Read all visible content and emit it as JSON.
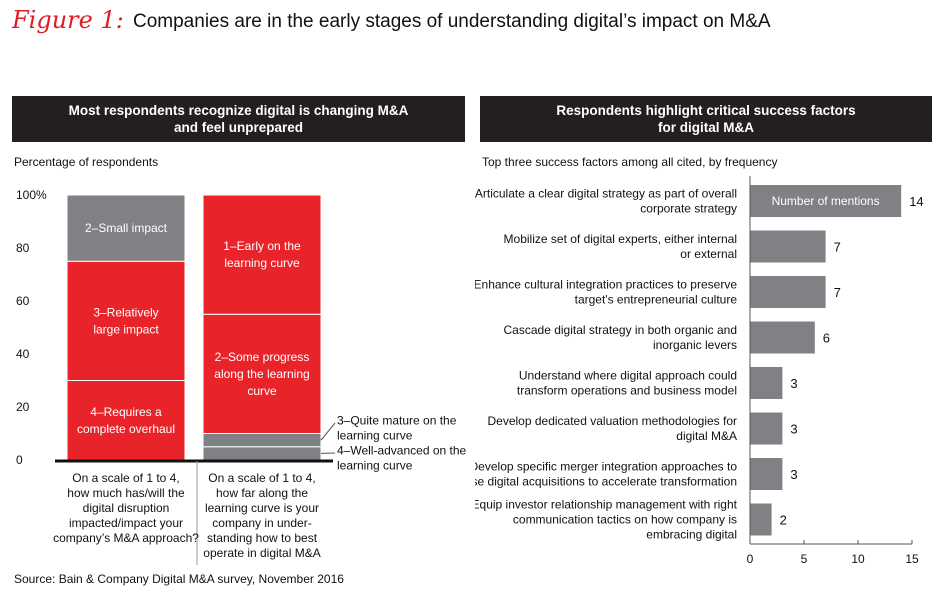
{
  "figure": {
    "label": "Figure 1:",
    "title": "Companies are in the early stages of understanding digital’s impact on M&A"
  },
  "left_panel": {
    "header_line1": "Most respondents recognize digital is changing M&A",
    "header_line2": "and feel unprepared",
    "subtitle": "Percentage of respondents"
  },
  "right_panel": {
    "header_line1": "Respondents highlight critical success factors",
    "header_line2": "for digital M&A",
    "subtitle": "Top three success factors among all cited, by frequency"
  },
  "source": "Source: Bain & Company Digital M&A survey, November 2016",
  "colors": {
    "red": "#e8242a",
    "gray": "#808184",
    "dark": "#231f20",
    "accent": "#e11b22"
  },
  "chart_data": [
    {
      "type": "bar",
      "stacked": true,
      "ylim": [
        0,
        100
      ],
      "yticks": [
        "0",
        "20",
        "40",
        "60",
        "80",
        "100%"
      ],
      "categories": [
        [
          "On a scale of 1 to 4,",
          "how much has/will the",
          "digital disruption",
          "impacted/impact your",
          "company’s M&A approach?"
        ],
        [
          "On a scale of 1 to 4,",
          "how far along the",
          "learning curve is your",
          "company in under-",
          "standing how to best",
          "operate in digital M&A"
        ]
      ],
      "bars": [
        [
          {
            "label": [
              "4–Requires a",
              "complete overhaul"
            ],
            "value": 30,
            "color": "red"
          },
          {
            "label": [
              "3–Relatively",
              "large impact"
            ],
            "value": 45,
            "color": "red"
          },
          {
            "label": [
              "2–Small impact"
            ],
            "value": 25,
            "color": "gray"
          }
        ],
        [
          {
            "label": [
              "4–Well-advanced on the",
              "learning curve"
            ],
            "value": 5,
            "color": "gray",
            "outside": true
          },
          {
            "label": [
              "3–Quite mature on the",
              "learning curve"
            ],
            "value": 5,
            "color": "gray",
            "outside": true
          },
          {
            "label": [
              "2–Some progress",
              "along the learning",
              "curve"
            ],
            "value": 45,
            "color": "red"
          },
          {
            "label": [
              "1–Early on the",
              "learning curve"
            ],
            "value": 45,
            "color": "red"
          }
        ]
      ]
    },
    {
      "type": "bar",
      "orientation": "horizontal",
      "xlim": [
        0,
        15
      ],
      "xticks": [
        0,
        5,
        10,
        15
      ],
      "legend_label": "Number of mentions",
      "categories": [
        [
          "Articulate a clear digital strategy as part of overall",
          "corporate strategy"
        ],
        [
          "Mobilize set of digital experts, either internal",
          "or external"
        ],
        [
          "Enhance cultural integration practices to preserve",
          "target's entrepreneurial culture"
        ],
        [
          "Cascade digital strategy in both organic and",
          "inorganic levers"
        ],
        [
          "Understand where digital approach could",
          "transform operations and business model"
        ],
        [
          "Develop dedicated valuation methodologies for",
          "digital M&A"
        ],
        [
          "Develop specific merger integration approaches to",
          "use digital acquisitions to accelerate transformation"
        ],
        [
          "Equip investor relationship management with right",
          "communication tactics on how company is",
          "embracing digital"
        ]
      ],
      "values": [
        14,
        7,
        7,
        6,
        3,
        3,
        3,
        2
      ]
    }
  ]
}
